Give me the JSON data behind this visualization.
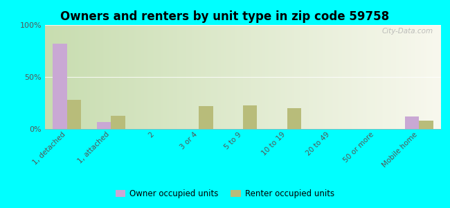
{
  "title": "Owners and renters by unit type in zip code 59758",
  "categories": [
    "1, detached",
    "1, attached",
    "2",
    "3 or 4",
    "5 to 9",
    "10 to 19",
    "20 to 49",
    "50 or more",
    "Mobile home"
  ],
  "owner_values": [
    82,
    7,
    0,
    0,
    0,
    0,
    0,
    0,
    12
  ],
  "renter_values": [
    28,
    13,
    0,
    22,
    23,
    20,
    0,
    0,
    8
  ],
  "owner_color": "#c9a8d4",
  "renter_color": "#b8bc7a",
  "background_color": "#00ffff",
  "ylim": [
    0,
    100
  ],
  "yticks": [
    0,
    50,
    100
  ],
  "ytick_labels": [
    "0%",
    "50%",
    "100%"
  ],
  "bar_width": 0.32,
  "legend_owner": "Owner occupied units",
  "legend_renter": "Renter occupied units",
  "watermark": "City-Data.com",
  "grad_colors": [
    "#c8ddb0",
    "#eef4e0",
    "#f8f8ee"
  ],
  "title_fontsize": 12
}
